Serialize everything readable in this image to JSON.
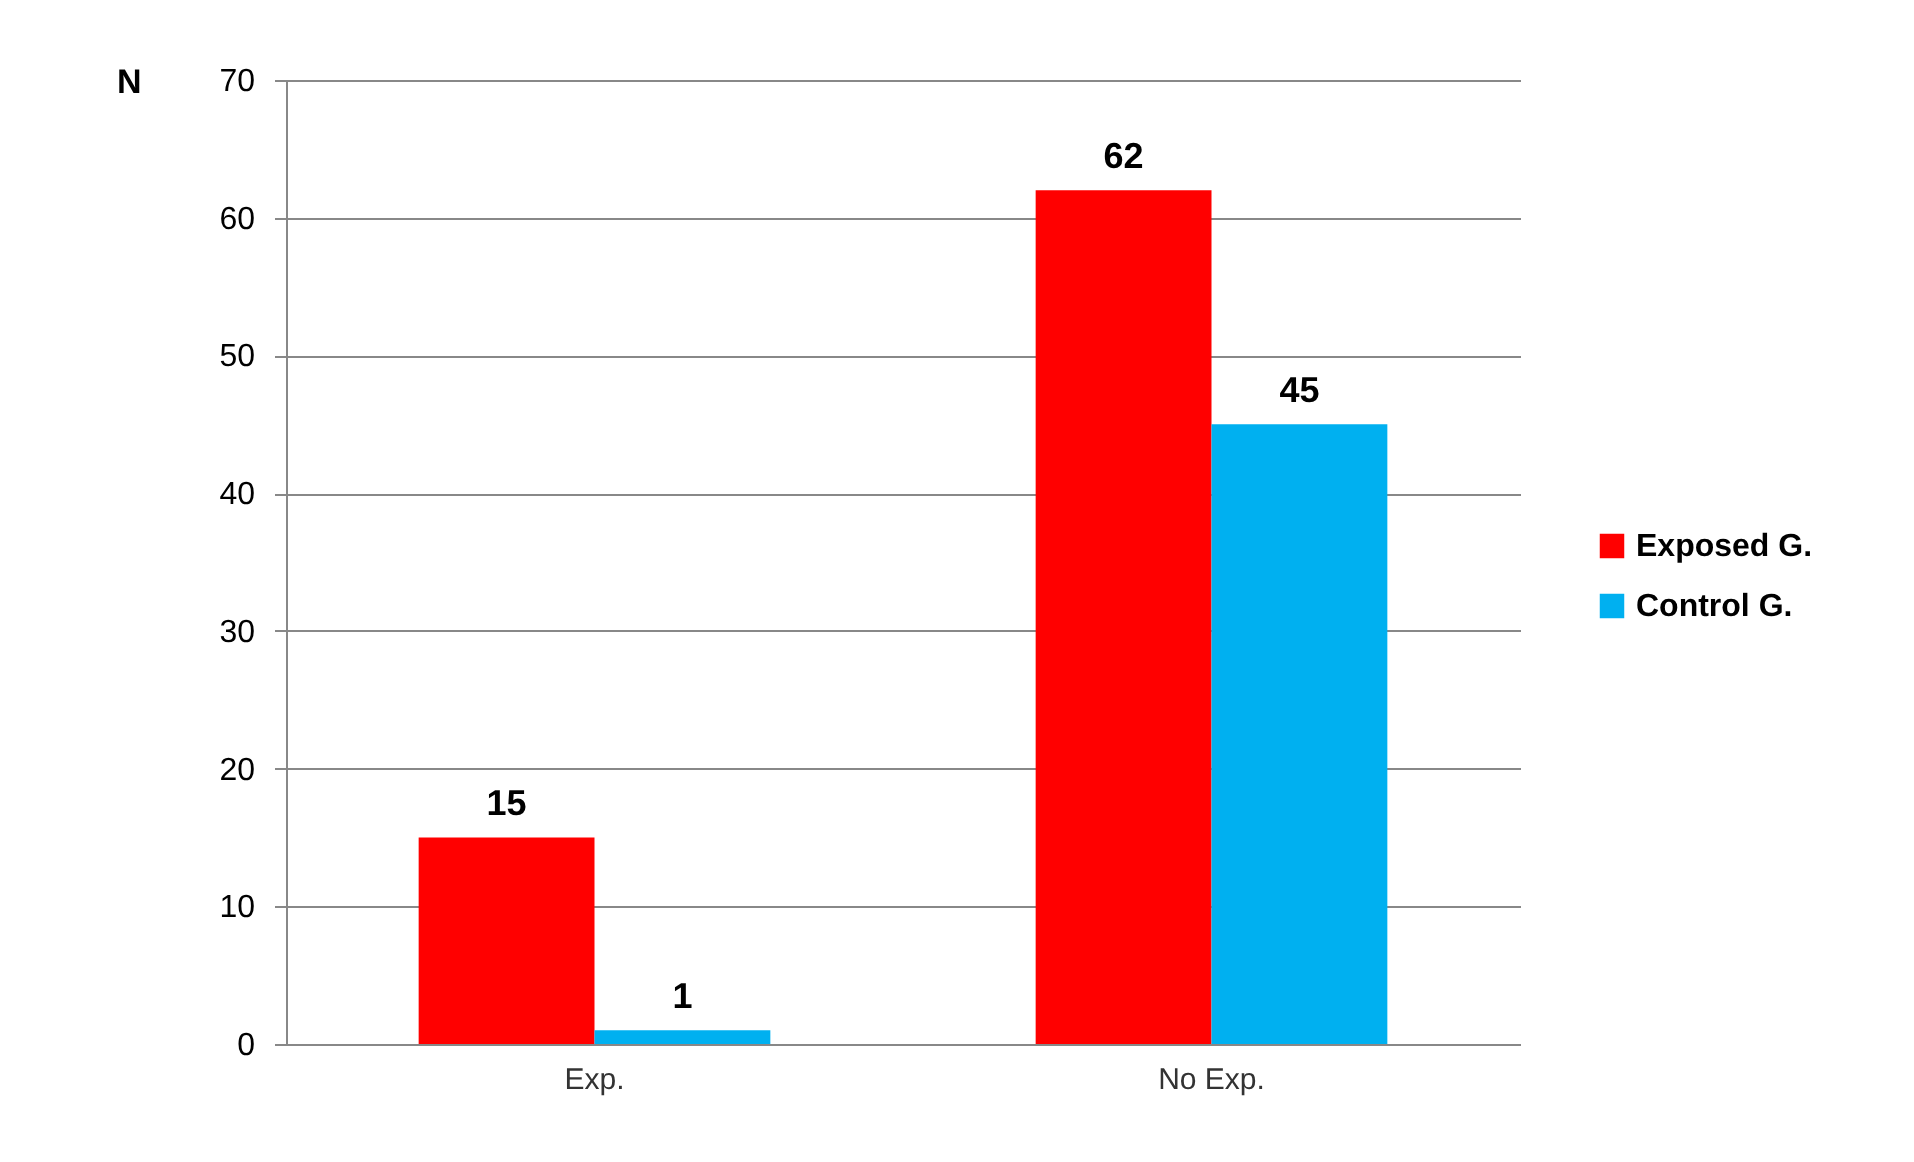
{
  "chart_data": {
    "type": "bar",
    "ylabel": "N",
    "categories": [
      "Exp.",
      "No Exp."
    ],
    "series": [
      {
        "name": "Exposed G.",
        "color": "#ff0000",
        "values": [
          15,
          62
        ]
      },
      {
        "name": "Control G.",
        "color": "#00b0f0",
        "values": [
          1,
          45
        ]
      }
    ],
    "ylim": [
      0,
      70
    ],
    "yticks": [
      0,
      10,
      20,
      30,
      40,
      50,
      60,
      70
    ],
    "grid": "y",
    "legend": "right",
    "data_labels": true
  }
}
